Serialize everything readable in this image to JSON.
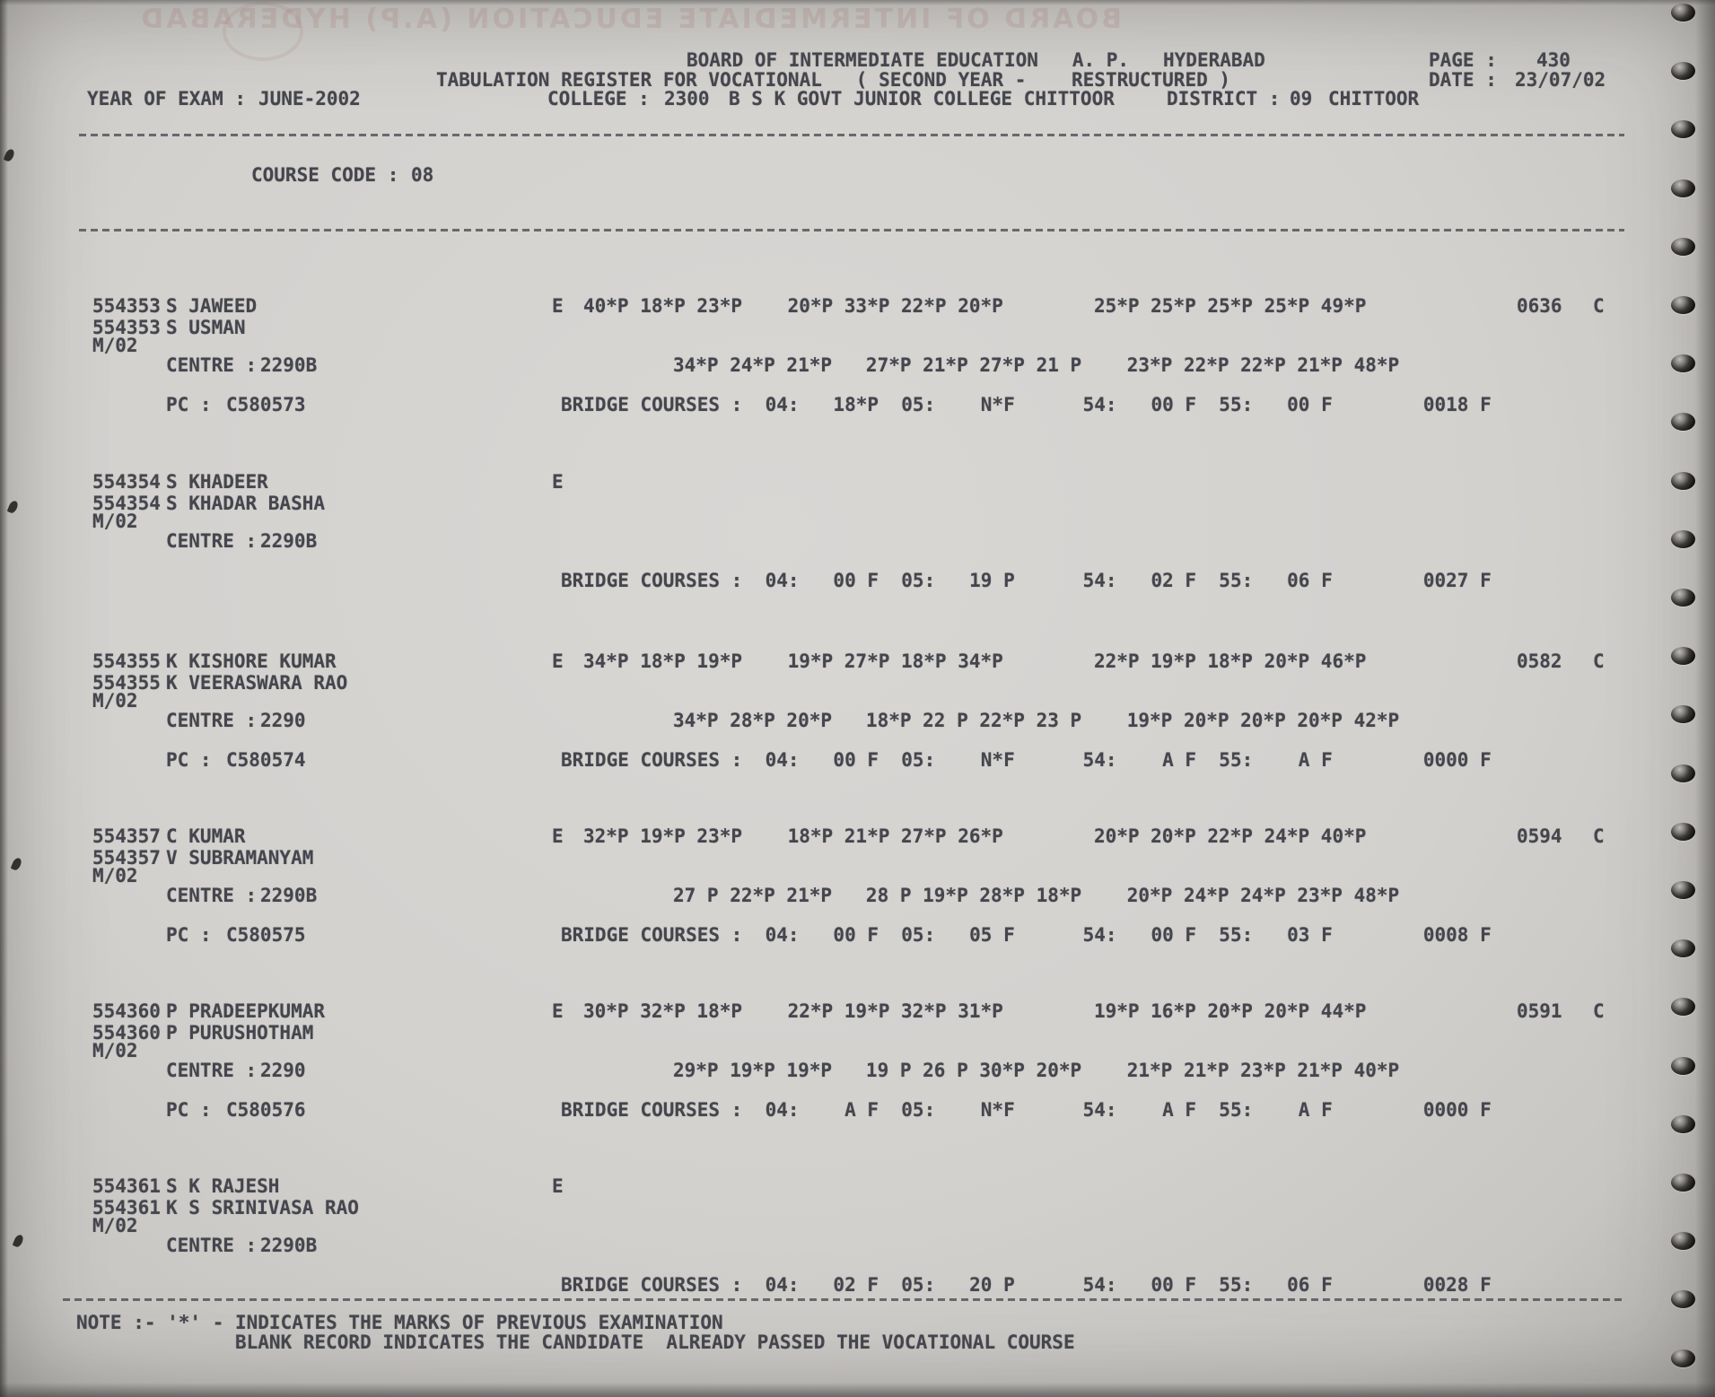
{
  "header": {
    "board_line": "BOARD OF INTERMEDIATE EDUCATION   A. P.   HYDERABAD",
    "register_line": "TABULATION REGISTER FOR VOCATIONAL   ( SECOND YEAR -    RESTRUCTURED )",
    "year_of_exam_label": "YEAR OF EXAM :",
    "year_of_exam": "JUNE-2002",
    "college_label": "COLLEGE :",
    "college_code": "2300",
    "college_name": "B S K GOVT JUNIOR COLLEGE CHITTOOR",
    "district_label": "DISTRICT :",
    "district_code": "09",
    "district_name": "CHITTOOR",
    "page_label": "PAGE :",
    "page": "430",
    "date_label": "DATE :",
    "date": "23/07/02"
  },
  "course": {
    "label": "COURSE CODE :",
    "code": "08"
  },
  "records": [
    {
      "regd_no": "554353",
      "name": "S JAWEED",
      "father_name": "S USMAN",
      "session": "M/02",
      "medium": "E",
      "marks_row1": "40*P 18*P 23*P    20*P 33*P 22*P 20*P        25*P 25*P 25*P 25*P 49*P",
      "total": "0636",
      "result": "C",
      "centre_label": "CENTRE :",
      "centre": "2290B",
      "marks_row2": "34*P 24*P 21*P   27*P 21*P 27*P 21 P    23*P 22*P 22*P 21*P 48*P",
      "pc_label": "PC :",
      "pc": "C580573",
      "bridge": "BRIDGE COURSES :  04:   18*P  05:    N*F      54:   00 F  55:   00 F        0018 F"
    },
    {
      "regd_no": "554354",
      "name": "S KHADEER",
      "father_name": "S KHADAR BASHA",
      "session": "M/02",
      "medium": "E",
      "marks_row1": "",
      "total": "",
      "result": "",
      "centre_label": "CENTRE :",
      "centre": "2290B",
      "marks_row2": "",
      "pc_label": "",
      "pc": "",
      "bridge": "BRIDGE COURSES :  04:   00 F  05:   19 P      54:   02 F  55:   06 F        0027 F"
    },
    {
      "regd_no": "554355",
      "name": "K KISHORE KUMAR",
      "father_name": "K VEERASWARA RAO",
      "session": "M/02",
      "medium": "E",
      "marks_row1": "34*P 18*P 19*P    19*P 27*P 18*P 34*P        22*P 19*P 18*P 20*P 46*P",
      "total": "0582",
      "result": "C",
      "centre_label": "CENTRE :",
      "centre": "2290",
      "marks_row2": "34*P 28*P 20*P   18*P 22 P 22*P 23 P    19*P 20*P 20*P 20*P 42*P",
      "pc_label": "PC :",
      "pc": "C580574",
      "bridge": "BRIDGE COURSES :  04:   00 F  05:    N*F      54:    A F  55:    A F        0000 F"
    },
    {
      "regd_no": "554357",
      "name": "C KUMAR",
      "father_name": "V SUBRAMANYAM",
      "session": "M/02",
      "medium": "E",
      "marks_row1": "32*P 19*P 23*P    18*P 21*P 27*P 26*P        20*P 20*P 22*P 24*P 40*P",
      "total": "0594",
      "result": "C",
      "centre_label": "CENTRE :",
      "centre": "2290B",
      "marks_row2": "27 P 22*P 21*P   28 P 19*P 28*P 18*P    20*P 24*P 24*P 23*P 48*P",
      "pc_label": "PC :",
      "pc": "C580575",
      "bridge": "BRIDGE COURSES :  04:   00 F  05:   05 F      54:   00 F  55:   03 F        0008 F"
    },
    {
      "regd_no": "554360",
      "name": "P PRADEEPKUMAR",
      "father_name": "P PURUSHOTHAM",
      "session": "M/02",
      "medium": "E",
      "marks_row1": "30*P 32*P 18*P    22*P 19*P 32*P 31*P        19*P 16*P 20*P 20*P 44*P",
      "total": "0591",
      "result": "C",
      "centre_label": "CENTRE :",
      "centre": "2290",
      "marks_row2": "29*P 19*P 19*P   19 P 26 P 30*P 20*P    21*P 21*P 23*P 21*P 40*P",
      "pc_label": "PC :",
      "pc": "C580576",
      "bridge": "BRIDGE COURSES :  04:    A F  05:    N*F      54:    A F  55:    A F        0000 F"
    },
    {
      "regd_no": "554361",
      "name": "S K RAJESH",
      "father_name": "K S SRINIVASA RAO",
      "session": "M/02",
      "medium": "E",
      "marks_row1": "",
      "total": "",
      "result": "",
      "centre_label": "CENTRE :",
      "centre": "2290B",
      "marks_row2": "",
      "pc_label": "",
      "pc": "",
      "bridge": "BRIDGE COURSES :  04:   02 F  05:   20 P      54:   00 F  55:   06 F        0028 F"
    }
  ],
  "note": {
    "line1": "NOTE :- '*' - INDICATES THE MARKS OF PREVIOUS EXAMINATION",
    "line2": "BLANK RECORD INDICATES THE CANDIDATE  ALREADY PASSED THE VOCATIONAL COURSE"
  },
  "ghost_bleedthrough": "BOARD OF INTERMEDIATE EDUCATION (A.P) HYDERABAD",
  "colors": {
    "paper": "#d3d1ce",
    "ink": "#45464d"
  }
}
